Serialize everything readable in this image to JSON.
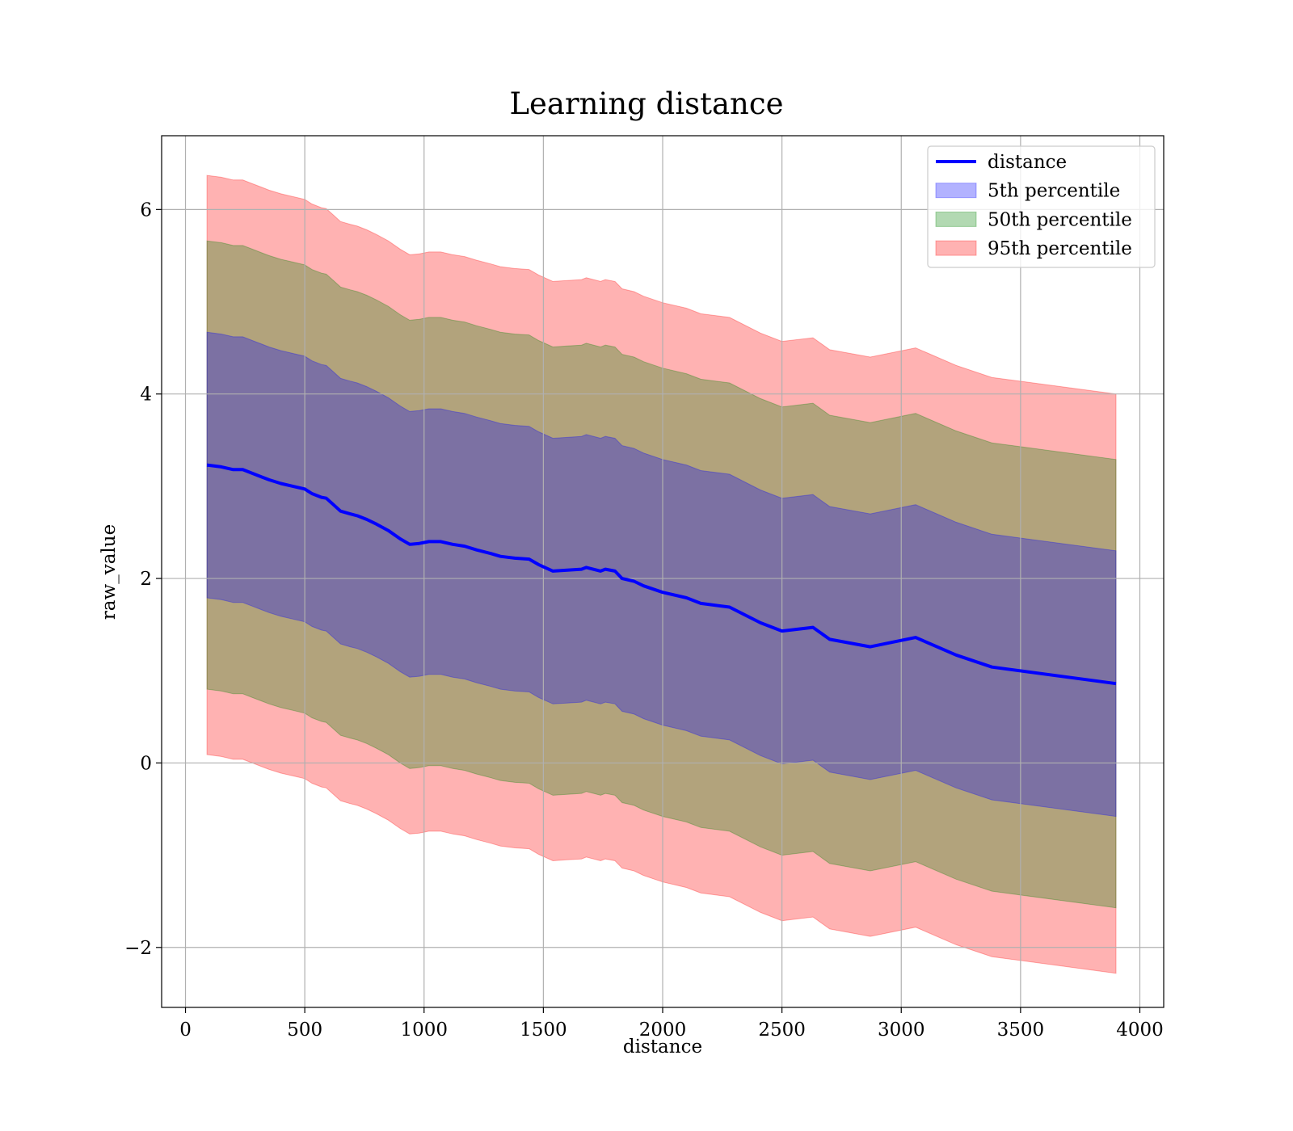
{
  "chart_data": {
    "type": "area",
    "title": "Learning distance",
    "xlabel": "distance",
    "ylabel": "raw_value",
    "xlim": [
      -100,
      4100
    ],
    "ylim": [
      -2.65,
      6.8
    ],
    "xticks": [
      0,
      500,
      1000,
      1500,
      2000,
      2500,
      3000,
      3500,
      4000
    ],
    "xtick_labels": [
      "0",
      "500",
      "1000",
      "1500",
      "2000",
      "2500",
      "3000",
      "3500",
      "4000"
    ],
    "yticks": [
      -2,
      0,
      2,
      4,
      6
    ],
    "ytick_labels": [
      "−2",
      "0",
      "2",
      "4",
      "6"
    ],
    "grid": true,
    "legend_position": "top-right",
    "legend": [
      {
        "label": "distance",
        "kind": "line",
        "color": "#0000ff"
      },
      {
        "label": "5th percentile",
        "kind": "patch",
        "color": "#0000ff",
        "alpha": 0.3
      },
      {
        "label": "50th percentile",
        "kind": "patch",
        "color": "#008000",
        "alpha": 0.3
      },
      {
        "label": "95th percentile",
        "kind": "patch",
        "color": "#ff0000",
        "alpha": 0.3
      }
    ],
    "x": [
      90,
      150,
      200,
      240,
      280,
      320,
      350,
      400,
      450,
      500,
      530,
      570,
      590,
      620,
      650,
      690,
      720,
      760,
      800,
      850,
      900,
      940,
      980,
      1020,
      1070,
      1120,
      1170,
      1220,
      1280,
      1320,
      1380,
      1440,
      1480,
      1540,
      1600,
      1660,
      1680,
      1740,
      1760,
      1800,
      1830,
      1880,
      1920,
      2000,
      2100,
      2160,
      2280,
      2410,
      2500,
      2630,
      2700,
      2870,
      3060,
      3230,
      3380,
      3900
    ],
    "series": [
      {
        "name": "distance",
        "values": [
          3.23,
          3.21,
          3.18,
          3.18,
          3.14,
          3.1,
          3.07,
          3.03,
          3.0,
          2.97,
          2.92,
          2.88,
          2.87,
          2.8,
          2.73,
          2.7,
          2.68,
          2.64,
          2.59,
          2.52,
          2.43,
          2.37,
          2.38,
          2.4,
          2.4,
          2.37,
          2.35,
          2.31,
          2.27,
          2.24,
          2.22,
          2.21,
          2.15,
          2.08,
          2.09,
          2.1,
          2.12,
          2.08,
          2.1,
          2.08,
          2.0,
          1.97,
          1.92,
          1.85,
          1.79,
          1.73,
          1.69,
          1.52,
          1.43,
          1.47,
          1.34,
          1.26,
          1.36,
          1.17,
          1.04,
          0.86
        ]
      }
    ],
    "bands": [
      {
        "name": "95th percentile",
        "lower_offset": -3.14,
        "upper_offset": 3.14,
        "color": "#ff0000",
        "alpha": 0.3
      },
      {
        "name": "50th percentile",
        "lower_offset": -2.43,
        "upper_offset": 2.43,
        "color": "#008000",
        "alpha": 0.3
      },
      {
        "name": "5th percentile",
        "lower_offset": -1.44,
        "upper_offset": 1.44,
        "color": "#0000ff",
        "alpha": 0.3
      }
    ]
  }
}
